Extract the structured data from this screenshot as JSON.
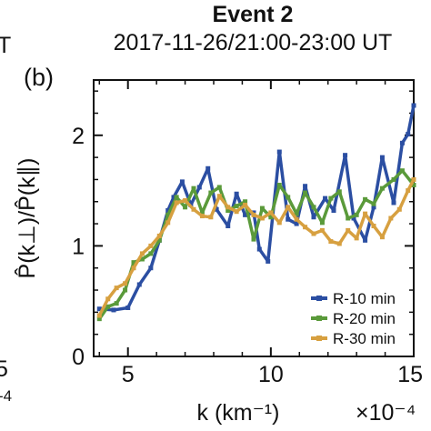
{
  "figure": {
    "left_edge_fragments": [
      "T",
      "5",
      "-4"
    ]
  },
  "chart_data": {
    "type": "line",
    "title": "Event 2",
    "subtitle": "2017-11-26/21:00-23:00 UT",
    "panel_label": "(b)",
    "xlabel": "k (km⁻¹)",
    "x_multiplier": "×10⁻⁴",
    "ylabel": "P̂(k⊥)/P̂(k∥)",
    "xlim": [
      3.8,
      15
    ],
    "ylim": [
      0,
      2.5
    ],
    "xticks": [
      5,
      10,
      15
    ],
    "yticks": [
      0,
      1,
      2
    ],
    "grid": false,
    "legend_position": "bottom-right",
    "colors": {
      "axis": "#111111"
    },
    "series": [
      {
        "name": "R-10 min",
        "color": "#2b4ea2",
        "x": [
          4.0,
          4.5,
          5.0,
          5.4,
          5.8,
          6.1,
          6.4,
          6.6,
          6.9,
          7.2,
          7.5,
          7.8,
          8.1,
          8.5,
          8.8,
          9.1,
          9.4,
          9.6,
          9.9,
          10.3,
          10.6,
          10.9,
          11.2,
          11.5,
          11.9,
          12.2,
          12.6,
          12.9,
          13.3,
          13.6,
          13.9,
          14.3,
          14.6,
          14.8,
          15.0
        ],
        "values": [
          0.43,
          0.42,
          0.44,
          0.65,
          0.8,
          1.05,
          1.32,
          1.44,
          1.58,
          1.37,
          1.53,
          1.7,
          1.33,
          1.18,
          1.47,
          1.28,
          1.3,
          0.97,
          0.86,
          1.85,
          1.24,
          1.2,
          1.54,
          1.26,
          1.43,
          1.32,
          1.82,
          1.25,
          1.05,
          1.35,
          1.8,
          1.39,
          1.93,
          2.01,
          2.27
        ]
      },
      {
        "name": "R-20 min",
        "color": "#5a9a3a",
        "x": [
          4.0,
          4.3,
          4.6,
          4.9,
          5.2,
          5.5,
          5.8,
          6.1,
          6.4,
          6.7,
          7.0,
          7.3,
          7.6,
          7.9,
          8.2,
          8.5,
          8.8,
          9.1,
          9.4,
          9.7,
          10.0,
          10.3,
          10.6,
          10.9,
          11.2,
          11.5,
          11.8,
          12.1,
          12.4,
          12.7,
          13.0,
          13.3,
          13.6,
          13.9,
          14.3,
          14.6,
          15.0
        ],
        "values": [
          0.34,
          0.45,
          0.48,
          0.6,
          0.85,
          0.88,
          0.93,
          1.05,
          1.28,
          1.44,
          1.35,
          1.52,
          1.3,
          1.48,
          1.53,
          1.32,
          1.36,
          1.4,
          1.06,
          1.34,
          1.26,
          1.55,
          1.44,
          1.29,
          1.48,
          1.35,
          1.21,
          1.43,
          1.49,
          1.25,
          1.28,
          1.42,
          1.38,
          1.52,
          1.6,
          1.68,
          1.55
        ]
      },
      {
        "name": "R-30 min",
        "color": "#d7a040",
        "x": [
          4.0,
          4.3,
          4.6,
          4.9,
          5.2,
          5.5,
          5.8,
          6.1,
          6.4,
          6.7,
          7.0,
          7.3,
          7.6,
          7.9,
          8.2,
          8.5,
          8.8,
          9.1,
          9.4,
          9.7,
          10.0,
          10.3,
          10.6,
          10.9,
          11.2,
          11.5,
          11.8,
          12.1,
          12.4,
          12.7,
          13.0,
          13.3,
          13.6,
          13.9,
          14.2,
          14.5,
          14.8,
          15.0
        ],
        "values": [
          0.37,
          0.52,
          0.62,
          0.66,
          0.8,
          0.93,
          1.0,
          1.09,
          1.21,
          1.39,
          1.41,
          1.33,
          1.27,
          1.26,
          1.45,
          1.35,
          1.31,
          1.37,
          1.28,
          1.25,
          1.3,
          1.21,
          1.35,
          1.24,
          1.17,
          1.11,
          1.14,
          1.04,
          1.02,
          1.14,
          1.07,
          1.29,
          1.18,
          1.08,
          1.25,
          1.33,
          1.5,
          1.6
        ]
      }
    ]
  }
}
